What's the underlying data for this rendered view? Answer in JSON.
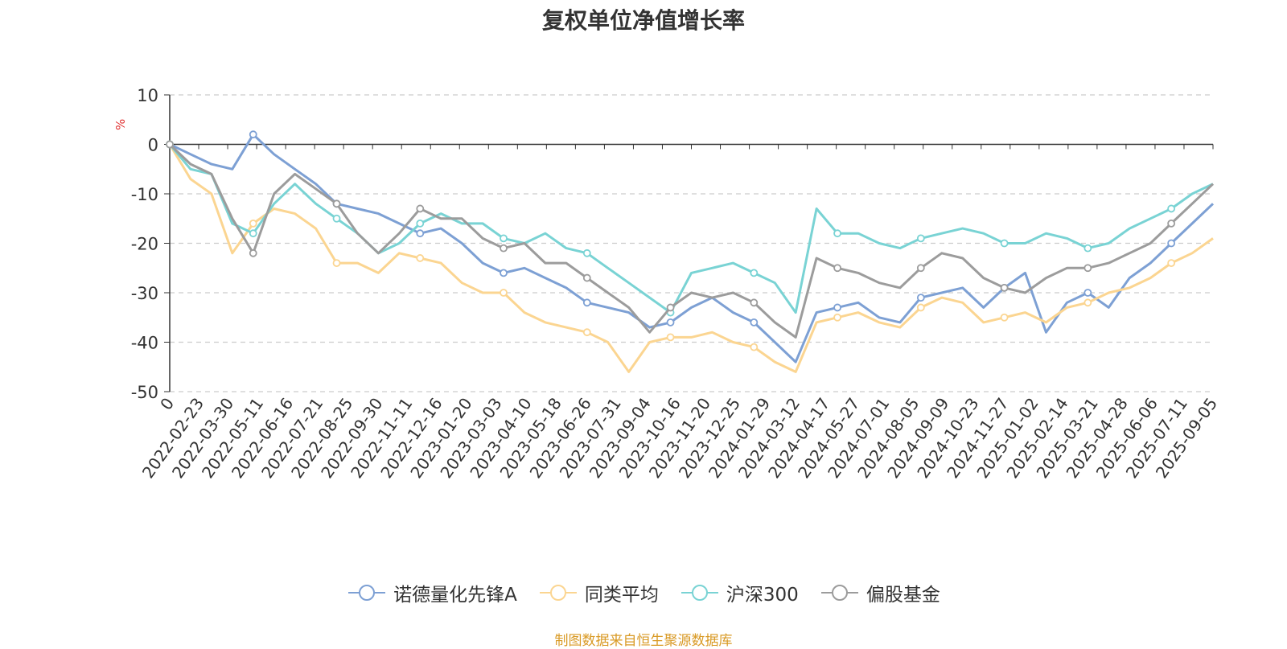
{
  "chart_data": {
    "type": "line",
    "title": "复权单位净值增长率",
    "ylabel": "%",
    "ylim": [
      -50,
      10
    ],
    "yticks": [
      10,
      0,
      -10,
      -20,
      -30,
      -40,
      -50
    ],
    "x_tick_labels": [
      "0",
      "2022-02-23",
      "2022-03-30",
      "2022-05-11",
      "2022-06-16",
      "2022-07-21",
      "2022-08-25",
      "2022-09-30",
      "2022-11-11",
      "2022-12-16",
      "2023-01-20",
      "2023-03-03",
      "2023-04-10",
      "2023-05-18",
      "2023-06-26",
      "2023-07-31",
      "2023-09-04",
      "2023-10-16",
      "2023-11-20",
      "2023-12-25",
      "2024-01-29",
      "2024-03-12",
      "2024-04-17",
      "2024-05-27",
      "2024-07-01",
      "2024-08-05",
      "2024-09-09",
      "2024-10-23",
      "2024-11-27",
      "2025-01-02",
      "2025-02-14",
      "2025-03-21",
      "2025-04-28",
      "2025-06-06",
      "2025-07-11",
      "2025-09-05"
    ],
    "grid": true,
    "legend_position": "bottom-center",
    "series": [
      {
        "name": "诺德量化先锋A",
        "color": "#7da0d4",
        "values": [
          0,
          -2,
          -4,
          -5,
          2,
          -2,
          -5,
          -8,
          -12,
          -13,
          -14,
          -16,
          -18,
          -17,
          -20,
          -24,
          -26,
          -25,
          -27,
          -29,
          -32,
          -33,
          -34,
          -37,
          -36,
          -33,
          -31,
          -34,
          -36,
          -40,
          -44,
          -34,
          -33,
          -32,
          -35,
          -36,
          -31,
          -30,
          -29,
          -33,
          -29,
          -26,
          -38,
          -32,
          -30,
          -33,
          -27,
          -24,
          -20,
          -16,
          -12
        ]
      },
      {
        "name": "同类平均",
        "color": "#fbd591",
        "values": [
          0,
          -7,
          -10,
          -22,
          -16,
          -13,
          -14,
          -17,
          -24,
          -24,
          -26,
          -22,
          -23,
          -24,
          -28,
          -30,
          -30,
          -34,
          -36,
          -37,
          -38,
          -40,
          -46,
          -40,
          -39,
          -39,
          -38,
          -40,
          -41,
          -44,
          -46,
          -36,
          -35,
          -34,
          -36,
          -37,
          -33,
          -31,
          -32,
          -36,
          -35,
          -34,
          -36,
          -33,
          -32,
          -30,
          -29,
          -27,
          -24,
          -22,
          -19
        ]
      },
      {
        "name": "沪深300",
        "color": "#79d3d4",
        "values": [
          0,
          -5,
          -6,
          -16,
          -18,
          -12,
          -8,
          -12,
          -15,
          -18,
          -22,
          -20,
          -16,
          -14,
          -16,
          -16,
          -19,
          -20,
          -18,
          -21,
          -22,
          -25,
          -28,
          -31,
          -34,
          -26,
          -25,
          -24,
          -26,
          -28,
          -34,
          -13,
          -18,
          -18,
          -20,
          -21,
          -19,
          -18,
          -17,
          -18,
          -20,
          -20,
          -18,
          -19,
          -21,
          -20,
          -17,
          -15,
          -13,
          -10,
          -8
        ]
      },
      {
        "name": "偏股基金",
        "color": "#9c9c9c",
        "values": [
          0,
          -4,
          -6,
          -15,
          -22,
          -10,
          -6,
          -9,
          -12,
          -18,
          -22,
          -18,
          -13,
          -15,
          -15,
          -19,
          -21,
          -20,
          -24,
          -24,
          -27,
          -30,
          -33,
          -38,
          -33,
          -30,
          -31,
          -30,
          -32,
          -36,
          -39,
          -23,
          -25,
          -26,
          -28,
          -29,
          -25,
          -22,
          -23,
          -27,
          -29,
          -30,
          -27,
          -25,
          -25,
          -24,
          -22,
          -20,
          -16,
          -12,
          -8
        ]
      }
    ]
  },
  "source_note": "制图数据来自恒生聚源数据库"
}
